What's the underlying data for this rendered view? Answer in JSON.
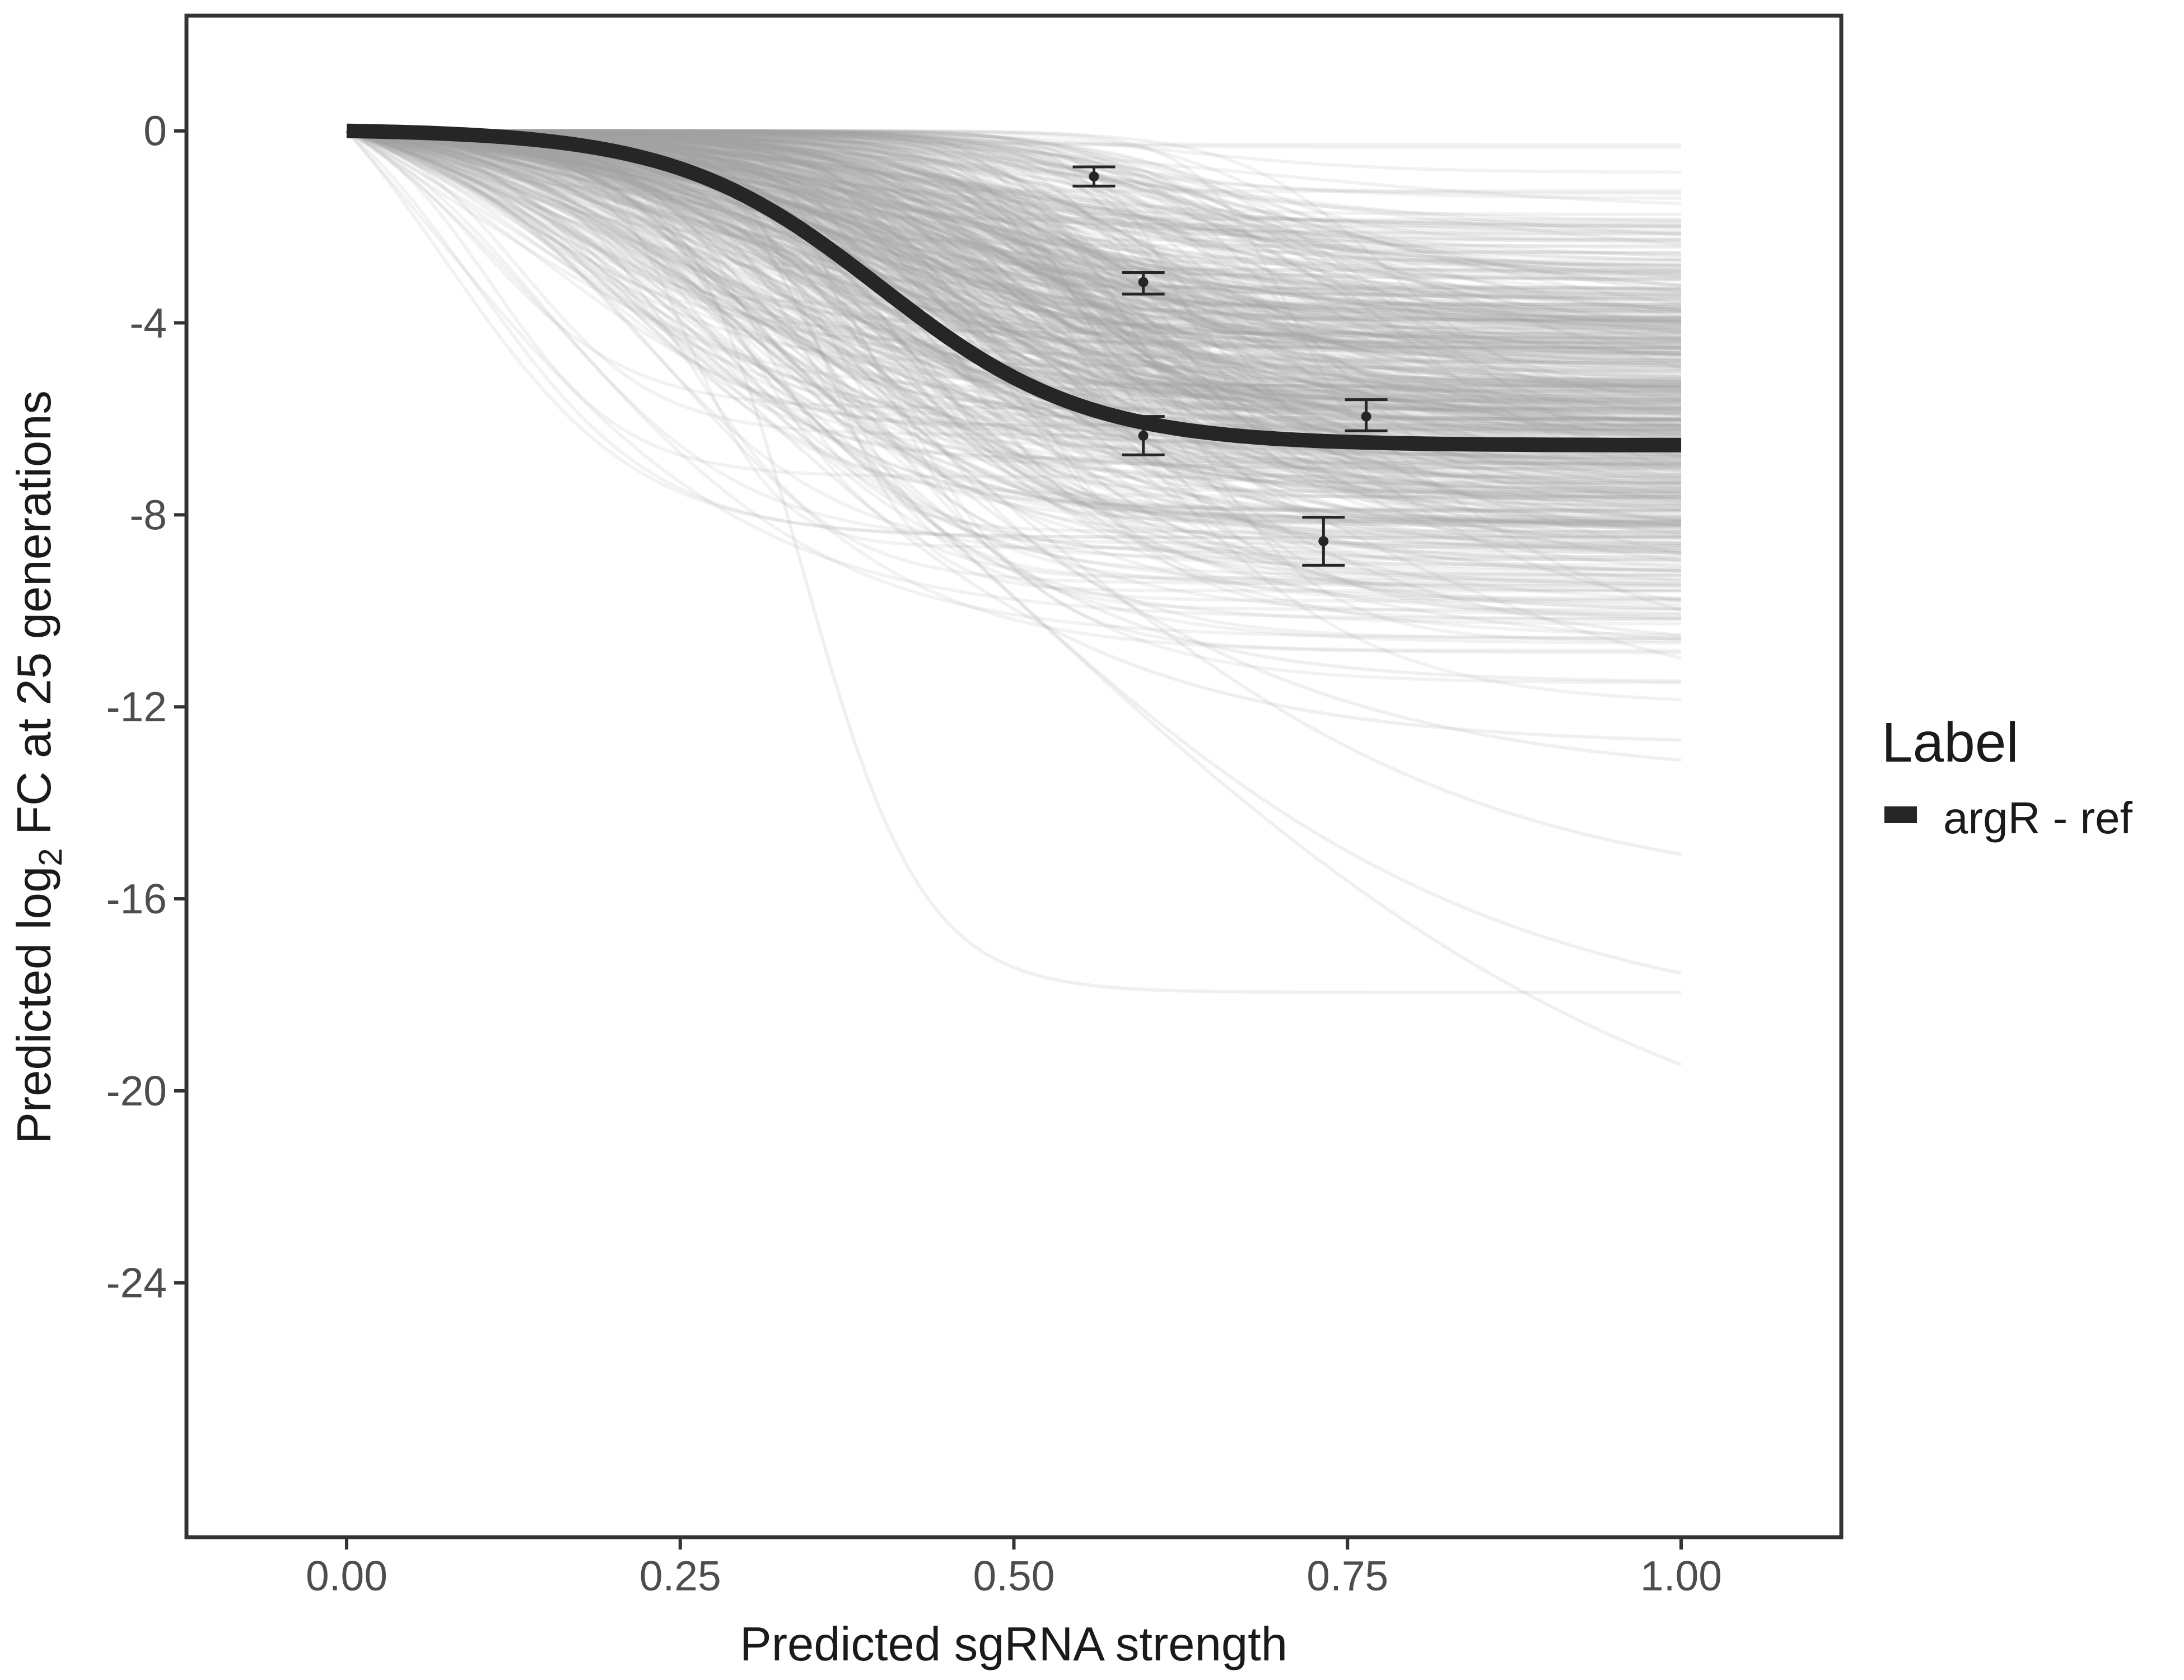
{
  "chart_data": {
    "type": "line",
    "xlabel": "Predicted sgRNA strength",
    "ylabel": {
      "pre": "Predicted  log",
      "sub": "2",
      "post": " FC at 25 generations"
    },
    "xlim": [
      -0.12,
      1.12
    ],
    "ylim": [
      -29.3,
      2.4
    ],
    "x_ticks": [
      0,
      0.25,
      0.5,
      0.75,
      1
    ],
    "x_tick_labels": [
      "0.00",
      "0.25",
      "0.50",
      "0.75",
      "1.00"
    ],
    "y_ticks": [
      0,
      -4,
      -8,
      -12,
      -16,
      -20,
      -24
    ],
    "y_tick_labels": [
      "0",
      "-4",
      "-8",
      "-12",
      "-16",
      "-20",
      "-24"
    ],
    "grid": false,
    "legend": {
      "title": "Label",
      "position": "right",
      "entries": [
        {
          "label": "argR - ref",
          "color": "#262626"
        }
      ]
    },
    "main_curve": {
      "name": "argR - ref",
      "model": "logistic",
      "asymptote": -6.55,
      "midpoint": 0.4,
      "rate": 13
    },
    "posterior_curves_note_count": 600,
    "posterior_color": "#a3a3a3",
    "observed_points": [
      {
        "x": 0.56,
        "y": -0.95,
        "ymin": -1.15,
        "ymax": -0.75
      },
      {
        "x": 0.597,
        "y": -3.15,
        "ymin": -3.4,
        "ymax": -2.95
      },
      {
        "x": 0.597,
        "y": -6.35,
        "ymin": -6.75,
        "ymax": -5.95
      },
      {
        "x": 0.732,
        "y": -8.55,
        "ymin": -9.05,
        "ymax": -8.05
      },
      {
        "x": 0.764,
        "y": -5.95,
        "ymin": -6.25,
        "ymax": -5.6
      }
    ],
    "outlier_curves": [
      {
        "asymptote": -17.95,
        "midpoint": 0.34,
        "rate": 22
      },
      {
        "asymptote": -22.5,
        "midpoint": 0.5,
        "rate": 4
      },
      {
        "asymptote": -18.8,
        "midpoint": 0.45,
        "rate": 5
      },
      {
        "asymptote": -16.0,
        "midpoint": 0.48,
        "rate": 5.5
      },
      {
        "asymptote": -13.5,
        "midpoint": 0.4,
        "rate": 6
      },
      {
        "asymptote": -12.8,
        "midpoint": 0.3,
        "rate": 7
      },
      {
        "asymptote": -11.5,
        "midpoint": 0.35,
        "rate": 9
      },
      {
        "asymptote": -10.8,
        "midpoint": 0.55,
        "rate": 8
      }
    ]
  }
}
